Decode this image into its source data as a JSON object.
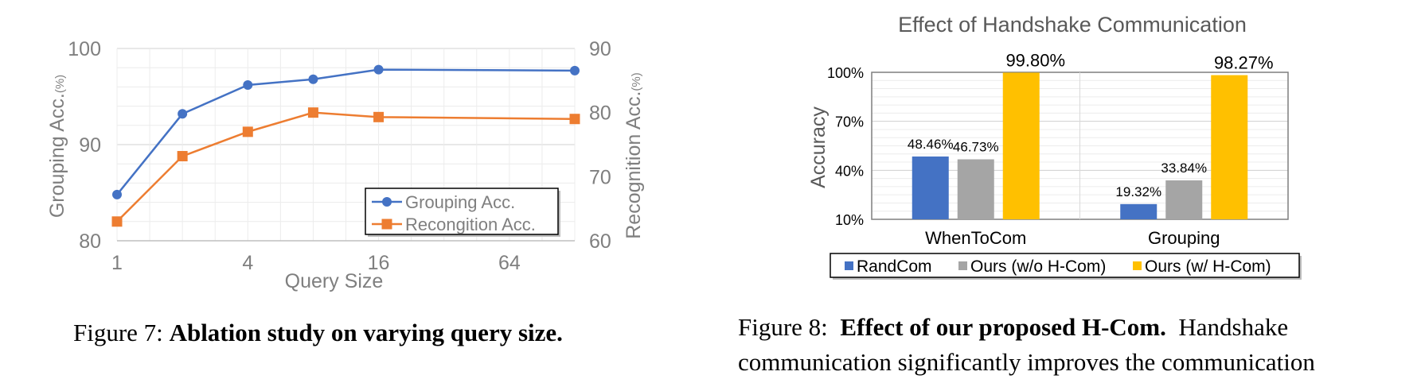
{
  "chart_data": [
    {
      "type": "line",
      "title": "",
      "xlabel": "Query Size",
      "x": [
        1,
        2,
        4,
        8,
        16,
        128
      ],
      "x_scale": "log2",
      "x_ticks": [
        "1",
        "4",
        "16",
        "64"
      ],
      "ylabel_left": "Grouping Acc.",
      "ylabel_left_unit": "(%)",
      "ylabel_right": "Recognition Acc.",
      "ylabel_right_unit": "(%)",
      "ylim_left": [
        80,
        100
      ],
      "yticks_left": [
        "80",
        "90",
        "100"
      ],
      "ylim_right": [
        60,
        90
      ],
      "yticks_right": [
        "60",
        "70",
        "80",
        "90"
      ],
      "grid": true,
      "legend_position": "bottom-right",
      "series": [
        {
          "name": "Grouping Acc.",
          "axis": "left",
          "marker": "circle",
          "color": "#4472C4",
          "values": [
            84.8,
            93.2,
            96.2,
            96.8,
            97.8,
            97.7
          ]
        },
        {
          "name": "Recongition Acc.",
          "axis": "right",
          "marker": "square",
          "color": "#ED7D31",
          "values": [
            63.0,
            73.2,
            77.0,
            80.0,
            79.3,
            79.0
          ]
        }
      ]
    },
    {
      "type": "bar",
      "title": "Effect of Handshake Communication",
      "xlabel": "",
      "ylabel": "Accuracy",
      "ylim": [
        10,
        100
      ],
      "yticks": [
        "10%",
        "40%",
        "70%",
        "100%"
      ],
      "categories": [
        "WhenToCom",
        "Grouping"
      ],
      "legend_position": "bottom",
      "series": [
        {
          "name": "RandCom",
          "color": "#4472C4",
          "values": [
            48.46,
            19.32
          ],
          "labels": [
            "48.46%",
            "19.32%"
          ]
        },
        {
          "name": "Ours (w/o H-Com)",
          "color": "#A5A5A5",
          "values": [
            46.73,
            33.84
          ],
          "labels": [
            "46.73%",
            "33.84%"
          ]
        },
        {
          "name": "Ours (w/ H-Com)",
          "color": "#FFC000",
          "values": [
            99.8,
            98.27
          ],
          "labels": [
            "99.80%",
            "98.27%"
          ]
        }
      ]
    }
  ],
  "captions": {
    "fig7_prefix": "Figure 7:",
    "fig7_bold": "Ablation study on varying query size.",
    "fig8_prefix": "Figure 8:",
    "fig8_bold": "Effect of our proposed H-Com.",
    "fig8_text1": "Handshake",
    "fig8_text2": "communication significantly improves the communication"
  }
}
